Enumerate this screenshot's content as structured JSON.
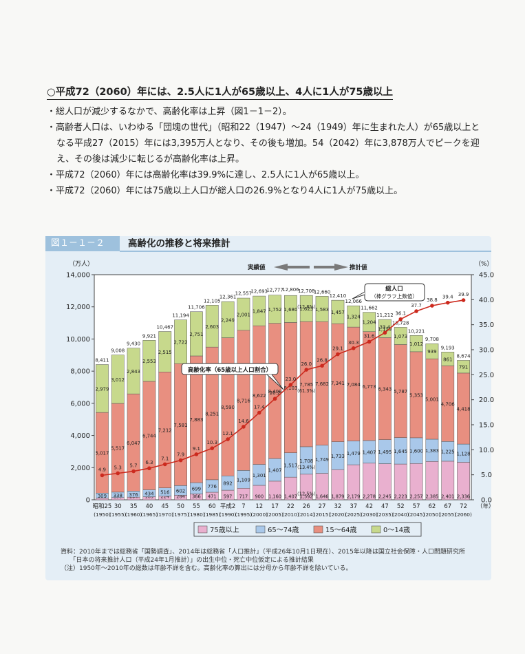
{
  "headline": "○平成72（2060）年には、2.5人に1人が65歳以上、4人に1人が75歳以上",
  "bullets": [
    "・総人口が減少するなかで、高齢化率は上昇（図1－1－2）。",
    "・高齢者人口は、いわゆる「団塊の世代」（昭和22（1947）～24（1949）年に生まれた人）が65歳以上となる平成27（2015）年には3,395万人となり、その後も増加。54（2042）年に3,878万人でピークを迎え、その後は減少に転じるが高齢化率は上昇。",
    "・平成72（2060）年には高齢化率は39.9%に達し、2.5人に1人が65歳以上。",
    "・平成72（2060）年には75歳以上人口が総人口の26.9%となり4人に1人が75歳以上。"
  ],
  "figure": {
    "label": "図１－１－２",
    "title": "高齢化の推移と将来推計"
  },
  "chart_data": {
    "type": "bar",
    "stacked": true,
    "left_unit": "（万人）",
    "right_unit": "（%）",
    "year_unit": "（年）",
    "left_ylim": [
      0,
      14000
    ],
    "left_ticks": [
      "0",
      "2,000",
      "4,000",
      "6,000",
      "8,000",
      "10,000",
      "12,000",
      "14,000"
    ],
    "right_ylim": [
      0,
      45
    ],
    "right_ticks": [
      "0.0",
      "5.0",
      "10.0",
      "15.0",
      "20.0",
      "25.0",
      "30.0",
      "35.0",
      "40.0",
      "45.0"
    ],
    "categories": [
      "昭和25",
      "30",
      "35",
      "40",
      "45",
      "50",
      "55",
      "60",
      "平成2",
      "7",
      "12",
      "17",
      "22",
      "26",
      "27",
      "32",
      "37",
      "42",
      "47",
      "52",
      "57",
      "62",
      "67",
      "72"
    ],
    "years": [
      "(1950)",
      "(1955)",
      "(1960)",
      "(1965)",
      "(1970)",
      "(1975)",
      "(1980)",
      "(1985)",
      "(1990)",
      "(1995)",
      "(2000)",
      "(2005)",
      "(2010)",
      "(2014)",
      "(2015)",
      "(2020)",
      "(2025)",
      "(2030)",
      "(2035)",
      "(2040)",
      "(2045)",
      "(2050)",
      "(2055)",
      "(2060)"
    ],
    "series": [
      {
        "name": "75歳以上",
        "color": "#e9b0cf",
        "values": [
          107,
          139,
          164,
          189,
          224,
          284,
          366,
          471,
          597,
          717,
          900,
          1160,
          1407,
          1592,
          1646,
          1879,
          2179,
          2278,
          2245,
          2223,
          2257,
          2385,
          2401,
          2336
        ],
        "labels": [
          "107",
          "139",
          "164",
          "189",
          "224",
          "284",
          "366",
          "471",
          "597",
          "717",
          "900",
          "1,160",
          "1,407",
          "1,592",
          "1,646",
          "1,879",
          "2,179",
          "2,278",
          "2,245",
          "2,223",
          "2,257",
          "2,385",
          "2,401",
          "2,336"
        ]
      },
      {
        "name": "65～74歳",
        "color": "#a9c8ea",
        "values": [
          309,
          338,
          376,
          434,
          516,
          602,
          699,
          776,
          892,
          1109,
          1301,
          1407,
          1517,
          1708,
          1749,
          1733,
          1479,
          1407,
          1495,
          1645,
          1600,
          1383,
          1225,
          1128
        ],
        "labels": [
          "309",
          "338",
          "376",
          "434",
          "516",
          "602",
          "699",
          "776",
          "892",
          "1,109",
          "1,301",
          "1,407",
          "1,517",
          "1,708",
          "1,749",
          "1,733",
          "1,479",
          "1,407",
          "1,495",
          "1,645",
          "1,600",
          "1,383",
          "1,225",
          "1,128"
        ]
      },
      {
        "name": "15～64歳",
        "color": "#e88f80",
        "values": [
          5017,
          5517,
          6047,
          6744,
          7212,
          7581,
          7883,
          8251,
          8590,
          8716,
          8622,
          8409,
          8103,
          7785,
          7682,
          7341,
          7084,
          6773,
          6343,
          5787,
          5353,
          5001,
          4706,
          4418
        ],
        "labels": [
          "5,017",
          "5,517",
          "6,047",
          "6,744",
          "7,212",
          "7,581",
          "7,883",
          "8,251",
          "8,590",
          "8,716",
          "8,622",
          "8,409",
          "8,103",
          "7,785",
          "7,682",
          "7,341",
          "7,084",
          "6,773",
          "6,343",
          "5,787",
          "5,353",
          "5,001",
          "4,706",
          "4,418"
        ]
      },
      {
        "name": "0～14歳",
        "color": "#c7d98c",
        "values": [
          2979,
          3012,
          2843,
          2553,
          2515,
          2722,
          2751,
          2603,
          2249,
          2001,
          1847,
          1752,
          1680,
          1623,
          1583,
          1457,
          1324,
          1204,
          1129,
          1073,
          1012,
          939,
          861,
          791
        ],
        "labels": [
          "2,979",
          "3,012",
          "2,843",
          "2,553",
          "2,515",
          "2,722",
          "2,751",
          "2,603",
          "2,249",
          "2,001",
          "1,847",
          "1,752",
          "1,680",
          "1,623",
          "1,583",
          "1,457",
          "1,324",
          "1,204",
          "1,129",
          "1,073",
          "1,012",
          "939",
          "861",
          "791"
        ]
      }
    ],
    "totals": [
      8411,
      9008,
      9430,
      9921,
      10467,
      11194,
      11706,
      12105,
      12361,
      12557,
      12693,
      12777,
      12806,
      12708,
      12660,
      12410,
      12066,
      11662,
      11212,
      10728,
      10221,
      9708,
      9193,
      8674
    ],
    "total_labels": [
      "8,411",
      "9,008",
      "9,430",
      "9,921",
      "10,467",
      "11,194",
      "11,706",
      "12,105",
      "12,361",
      "12,557",
      "12,693",
      "12,777",
      "12,806",
      "12,708",
      "12,660",
      "12,410",
      "12,066",
      "11,662",
      "11,212",
      "10,728",
      "10,221",
      "9,708",
      "9,193",
      "8,674"
    ],
    "aging_rate": {
      "name": "高齢化率（65歳以上人口割合）",
      "color": "#cc2a1e",
      "values": [
        4.9,
        5.3,
        5.7,
        6.3,
        7.1,
        7.9,
        9.1,
        10.3,
        12.1,
        14.6,
        17.4,
        20.2,
        23.0,
        26.0,
        26.8,
        29.1,
        30.3,
        31.6,
        33.4,
        36.1,
        37.7,
        38.8,
        39.4,
        39.9
      ],
      "labels": [
        "4.9",
        "5.3",
        "5.7",
        "6.3",
        "7.1",
        "7.9",
        "9.1",
        "10.3",
        "12.1",
        "14.6",
        "17.4",
        "20.2",
        "23.0",
        "26.0",
        "26.8",
        "29.1",
        "30.3",
        "31.6",
        "33.4",
        "36.1",
        "37.7",
        "38.8",
        "39.4",
        "39.9"
      ]
    },
    "annotations": {
      "actual": "実績値",
      "projection": "推計値",
      "total_callout_1": "総人口",
      "total_callout_2": "（棒グラフ上数値）",
      "rate_callout": "高齢化率（65歳以上人口割合）",
      "pct_2014_0_14": "（12.8%）",
      "pct_2014_15_64": "（61.3%）",
      "pct_2014_65_74": "（13.4%）",
      "pct_2014_75": "（12.5%）"
    },
    "legend": [
      "75歳以上",
      "65～74歳",
      "15～64歳",
      "0～14歳"
    ]
  },
  "notes": [
    "資料：2010年までは総務省「国勢調査」、2014年は総務省「人口推計」（平成26年10月1日現在）、2015年以降は国立社会保障・人口問題研究所",
    "　　「日本の将来推計人口（平成24年1月推計）」の出生中位・死亡中位仮定による推計結果",
    "（注）1950年～2010年の総数は年齢不詳を含む。高齢化率の算出には分母から年齢不詳を除いている。"
  ]
}
